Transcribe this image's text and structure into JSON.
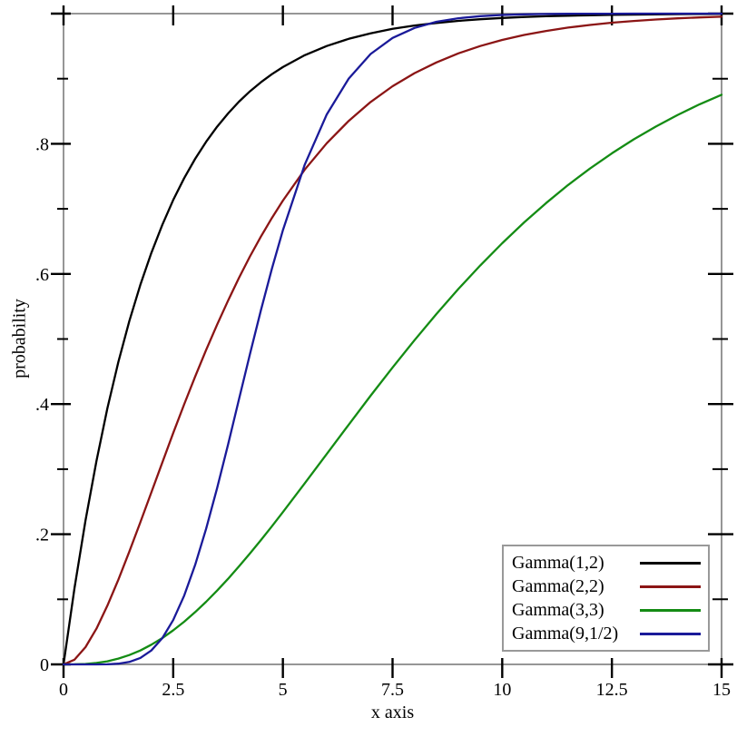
{
  "chart_data": {
    "type": "line",
    "xlabel": "x axis",
    "ylabel": "probability",
    "xlim": [
      0,
      15
    ],
    "ylim": [
      0,
      1
    ],
    "grid": false,
    "legend_position": "bottom-right",
    "x_ticks": {
      "values": [
        0,
        2.5,
        5,
        7.5,
        10,
        12.5,
        15
      ],
      "labels": [
        "0",
        "2.5",
        "5",
        "7.5",
        "10",
        "12.5",
        "15"
      ]
    },
    "y_ticks": {
      "values": [
        0,
        0.2,
        0.4,
        0.6,
        0.8,
        1.0
      ],
      "labels": [
        "0",
        ".2",
        ".4",
        ".6",
        ".8",
        ""
      ],
      "minor": [
        0.1,
        0.3,
        0.5,
        0.7,
        0.9
      ]
    },
    "x": [
      0,
      0.25,
      0.5,
      0.75,
      1,
      1.25,
      1.5,
      1.75,
      2,
      2.25,
      2.5,
      2.75,
      3,
      3.25,
      3.5,
      3.75,
      4,
      4.25,
      4.5,
      4.75,
      5,
      5.5,
      6,
      6.5,
      7,
      7.5,
      8,
      8.5,
      9,
      9.5,
      10,
      10.5,
      11,
      11.5,
      12,
      12.5,
      13,
      13.5,
      14,
      14.5,
      15
    ],
    "series": [
      {
        "name": "Gamma(1,2)",
        "shape": 1,
        "scale": 2,
        "color": "#000000",
        "y": [
          0,
          0.1175,
          0.2212,
          0.3127,
          0.3935,
          0.4647,
          0.5276,
          0.5831,
          0.6321,
          0.6753,
          0.7135,
          0.7472,
          0.7769,
          0.8031,
          0.8262,
          0.8466,
          0.8647,
          0.8806,
          0.8946,
          0.907,
          0.9179,
          0.9361,
          0.9502,
          0.9612,
          0.9698,
          0.9765,
          0.9817,
          0.9857,
          0.9889,
          0.9913,
          0.9933,
          0.9948,
          0.9959,
          0.9968,
          0.9975,
          0.9981,
          0.9985,
          0.9988,
          0.9991,
          0.9993,
          0.9994
        ]
      },
      {
        "name": "Gamma(2,2)",
        "shape": 2,
        "scale": 2,
        "color": "#8b1515",
        "y": [
          0,
          0.0072,
          0.0265,
          0.055,
          0.0902,
          0.1301,
          0.1733,
          0.2183,
          0.2642,
          0.31,
          0.3554,
          0.3996,
          0.4422,
          0.4831,
          0.522,
          0.559,
          0.594,
          0.6269,
          0.6574,
          0.6861,
          0.7127,
          0.7604,
          0.8008,
          0.8351,
          0.8641,
          0.8884,
          0.9085,
          0.9249,
          0.9389,
          0.9502,
          0.9596,
          0.9672,
          0.9734,
          0.9785,
          0.9826,
          0.986,
          0.9887,
          0.9909,
          0.9927,
          0.9941,
          0.9953
        ]
      },
      {
        "name": "Gamma(3,3)",
        "shape": 3,
        "scale": 3,
        "color": "#148c14",
        "y": [
          0,
          0.0001,
          0.0007,
          0.0022,
          0.0048,
          0.0089,
          0.0144,
          0.0214,
          0.0302,
          0.0405,
          0.0523,
          0.0656,
          0.0803,
          0.0962,
          0.1134,
          0.1315,
          0.1506,
          0.1705,
          0.1911,
          0.2123,
          0.234,
          0.2784,
          0.3233,
          0.3683,
          0.4128,
          0.4562,
          0.4982,
          0.5384,
          0.5768,
          0.6131,
          0.6472,
          0.6792,
          0.7089,
          0.7365,
          0.7619,
          0.7853,
          0.8068,
          0.8264,
          0.8444,
          0.8606,
          0.8753
        ]
      },
      {
        "name": "Gamma(9,1/2)",
        "shape": 9,
        "scale": 0.5,
        "color": "#1a1a99",
        "y": [
          0,
          0,
          0,
          0,
          0.0002,
          0.0011,
          0.0038,
          0.0099,
          0.0214,
          0.0403,
          0.0681,
          0.1056,
          0.1528,
          0.2084,
          0.2709,
          0.338,
          0.4074,
          0.4769,
          0.5443,
          0.6082,
          0.6672,
          0.768,
          0.845,
          0.9002,
          0.9379,
          0.9626,
          0.978,
          0.9874,
          0.9929,
          0.9961,
          0.9979,
          0.9989,
          0.9994,
          0.9997,
          0.9999,
          0.9999,
          1,
          1,
          1,
          1,
          1
        ]
      }
    ]
  },
  "colors": {
    "background": "#ffffff",
    "axis_line": "#8a8a8a",
    "tick": "#000000",
    "tick_label": "#000000",
    "legend_border": "#999999",
    "legend_background": "#ffffff"
  }
}
